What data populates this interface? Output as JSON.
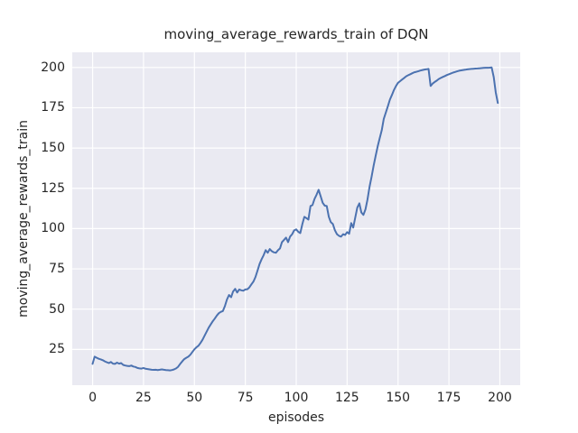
{
  "figure": {
    "title": "moving_average_rewards_train of DQN",
    "xlabel": "episodes",
    "ylabel": "moving_average_rewards_train"
  },
  "style": {
    "plot_bg": "#EAEAF2",
    "grid_color": "#FFFFFF",
    "line_color": "#4C72B0",
    "text_color": "#262626",
    "figure_bg": "#FFFFFF"
  },
  "chart_data": {
    "type": "line",
    "title": "moving_average_rewards_train of DQN",
    "xlabel": "episodes",
    "ylabel": "moving_average_rewards_train",
    "legend": "none",
    "grid": true,
    "xlim": [
      -10,
      210
    ],
    "ylim": [
      2.8,
      209.4
    ],
    "xticks": [
      0,
      25,
      50,
      75,
      100,
      125,
      150,
      175,
      200
    ],
    "yticks": [
      25,
      50,
      75,
      100,
      125,
      150,
      175,
      200
    ],
    "x_start_episode": 0,
    "values": [
      16.0,
      20.5,
      19.8,
      19.2,
      18.8,
      18.3,
      17.6,
      17.0,
      16.5,
      17.2,
      16.2,
      16.0,
      16.8,
      16.2,
      16.5,
      15.4,
      15.0,
      14.8,
      14.6,
      15.0,
      14.4,
      14.1,
      13.5,
      13.2,
      13.1,
      13.5,
      13.0,
      12.8,
      12.6,
      12.4,
      12.3,
      12.4,
      12.2,
      12.4,
      12.6,
      12.4,
      12.2,
      12.1,
      12.0,
      12.2,
      12.6,
      13.2,
      14.2,
      16.0,
      17.5,
      19.0,
      19.8,
      20.5,
      21.7,
      23.4,
      25.1,
      26.3,
      27.3,
      29.0,
      31.0,
      33.5,
      36.0,
      38.5,
      40.5,
      42.5,
      44.1,
      46.0,
      47.5,
      48.3,
      48.8,
      52.0,
      56.0,
      58.8,
      57.4,
      61.0,
      62.6,
      60.3,
      62.2,
      61.7,
      61.4,
      62.2,
      62.4,
      63.5,
      65.4,
      67.2,
      70.0,
      74.0,
      78.0,
      81.0,
      83.5,
      86.6,
      85.0,
      87.3,
      86.0,
      85.3,
      85.0,
      86.5,
      87.7,
      91.6,
      93.0,
      94.4,
      91.6,
      95.0,
      96.5,
      98.9,
      99.5,
      98.0,
      97.2,
      102.8,
      107.3,
      106.5,
      105.6,
      114.0,
      114.6,
      118.5,
      121.0,
      124.1,
      120.0,
      116.0,
      114.2,
      114.0,
      107.3,
      104.0,
      102.8,
      99.0,
      96.5,
      95.5,
      95.0,
      96.5,
      96.0,
      97.8,
      96.8,
      103.4,
      100.6,
      107.0,
      113.0,
      115.7,
      110.0,
      108.5,
      112.0,
      118.0,
      126.0,
      132.0,
      139.0,
      145.0,
      151.0,
      156.0,
      161.0,
      168.0,
      172.0,
      176.0,
      180.0,
      183.0,
      186.0,
      188.5,
      190.5,
      191.5,
      192.5,
      193.5,
      194.5,
      195.2,
      195.8,
      196.4,
      197.0,
      197.3,
      197.7,
      198.1,
      198.4,
      198.7,
      198.9,
      199.1,
      188.5,
      190.0,
      191.0,
      191.8,
      192.8,
      193.5,
      194.1,
      194.7,
      195.3,
      195.8,
      196.3,
      196.8,
      197.2,
      197.6,
      198.0,
      198.2,
      198.4,
      198.6,
      198.8,
      199.0,
      199.1,
      199.2,
      199.3,
      199.4,
      199.5,
      199.6,
      199.7,
      199.8,
      199.8,
      199.9,
      200.0,
      194.0,
      184.6,
      178.0
    ]
  }
}
